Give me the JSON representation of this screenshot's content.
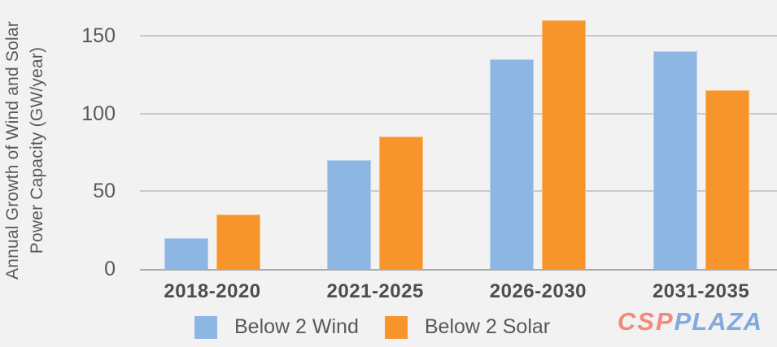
{
  "chart_data": {
    "type": "bar",
    "title": "",
    "ylabel": "Annual Growth of Wind and Solar Power Capacity (GW/year)",
    "ylabel_lines": [
      "Annual Growth of Wind and Solar",
      "Power Capacity (GW/year)"
    ],
    "categories": [
      "2018-2020",
      "2021-2025",
      "2026-2030",
      "2031-2035"
    ],
    "series": [
      {
        "name": "Below 2 Wind",
        "color": "#8db7e2",
        "values": [
          20,
          70,
          135,
          140
        ]
      },
      {
        "name": "Below 2 Solar",
        "color": "#f7952c",
        "values": [
          35,
          85,
          160,
          115
        ]
      }
    ],
    "yticks": [
      0,
      50,
      100,
      150
    ],
    "ylim": [
      0,
      173
    ],
    "grid": true,
    "legend_position": "bottom"
  },
  "watermark": {
    "part1": "CSP",
    "part2": "PLAZA",
    "part1_color": "#f28a7a",
    "part2_color": "#83aade"
  },
  "colors": {
    "background": "#f2f2f2",
    "gridline": "#c9c9c9",
    "axis_line": "#ababab",
    "text": "#595959"
  }
}
